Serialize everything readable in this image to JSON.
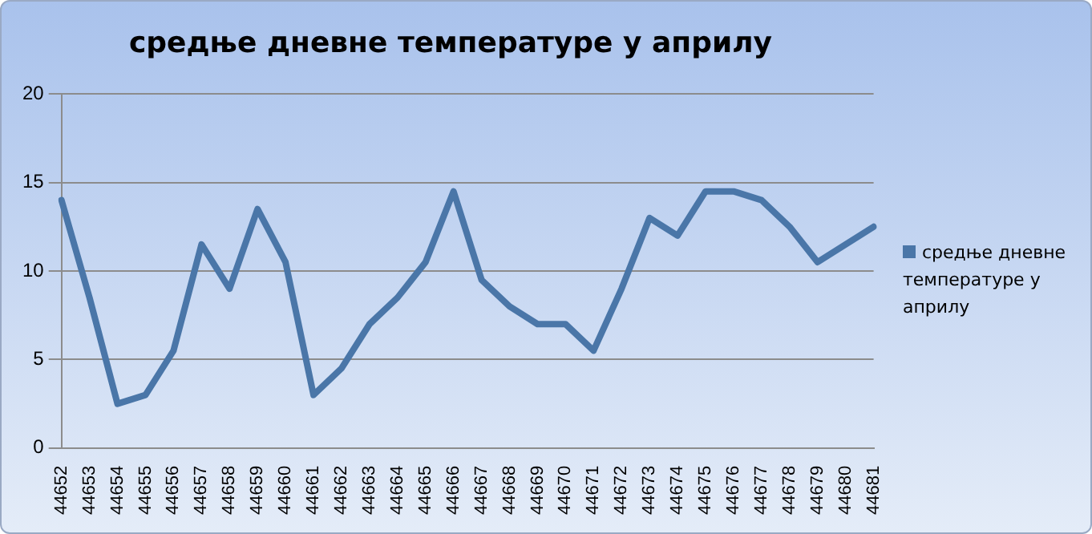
{
  "chart_data": {
    "type": "line",
    "title": "средње дневне температуре у априлу",
    "categories": [
      "44652",
      "44653",
      "44654",
      "44655",
      "44656",
      "44657",
      "44658",
      "44659",
      "44660",
      "44661",
      "44662",
      "44663",
      "44664",
      "44665",
      "44666",
      "44667",
      "44668",
      "44669",
      "44670",
      "44671",
      "44672",
      "44673",
      "44674",
      "44675",
      "44676",
      "44677",
      "44678",
      "44679",
      "44680",
      "44681"
    ],
    "series": [
      {
        "name": "средње дневне температуре у априлу",
        "color": "#4a76a8",
        "values": [
          14,
          8.5,
          2.5,
          3,
          5.5,
          11.5,
          9,
          13.5,
          10.5,
          3,
          4.5,
          7,
          8.5,
          10.5,
          14.5,
          9.5,
          8,
          7,
          7,
          5.5,
          9,
          13,
          12,
          14.5,
          14.5,
          14,
          12.5,
          10.5,
          11.5,
          12.5
        ]
      }
    ],
    "ylim": [
      0,
      20
    ],
    "yticks": [
      0,
      5,
      10,
      15,
      20
    ],
    "grid": "y",
    "legend": "right",
    "marker": "none",
    "line_style": "solid"
  }
}
